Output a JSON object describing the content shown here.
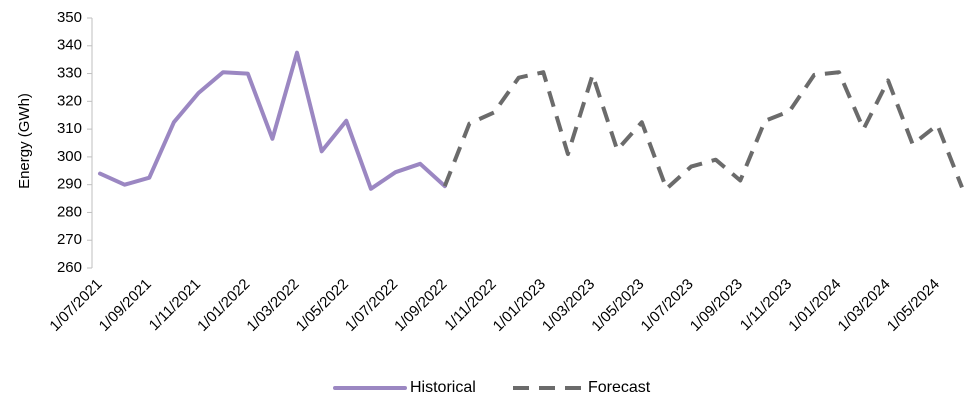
{
  "chart_data": {
    "type": "line",
    "title": "",
    "xlabel": "",
    "ylabel": "Energy (GWh)",
    "ylim": [
      260,
      350
    ],
    "yticks": [
      260,
      270,
      280,
      290,
      300,
      310,
      320,
      330,
      340,
      350
    ],
    "grid": false,
    "legend_position": "bottom",
    "x": [
      "2021-07",
      "2021-08",
      "2021-09",
      "2021-10",
      "2021-11",
      "2021-12",
      "2022-01",
      "2022-02",
      "2022-03",
      "2022-04",
      "2022-05",
      "2022-06",
      "2022-07",
      "2022-08",
      "2022-09",
      "2022-10",
      "2022-11",
      "2022-12",
      "2023-01",
      "2023-02",
      "2023-03",
      "2023-04",
      "2023-05",
      "2023-06",
      "2023-07",
      "2023-08",
      "2023-09",
      "2023-10",
      "2023-11",
      "2023-12",
      "2024-01",
      "2024-02",
      "2024-03",
      "2024-04",
      "2024-05",
      "2024-06"
    ],
    "x_tick_labels": [
      "1/07/2021",
      "1/09/2021",
      "1/11/2021",
      "1/01/2022",
      "1/03/2022",
      "1/05/2022",
      "1/07/2022",
      "1/09/2022",
      "1/11/2022",
      "1/01/2023",
      "1/03/2023",
      "1/05/2023",
      "1/07/2023",
      "1/09/2023",
      "1/11/2023",
      "1/01/2024",
      "1/03/2024",
      "1/05/2024"
    ],
    "series": [
      {
        "name": "Historical",
        "color": "#9b87c2",
        "style": "solid",
        "values": [
          294,
          290,
          292.5,
          312.5,
          323,
          330.5,
          330,
          306.5,
          337.5,
          302,
          313,
          288.5,
          294.5,
          297.5,
          289.5,
          null,
          null,
          null,
          null,
          null,
          null,
          null,
          null,
          null,
          null,
          null,
          null,
          null,
          null,
          null,
          null,
          null,
          null,
          null,
          null,
          null
        ]
      },
      {
        "name": "Forecast",
        "color": "#6b6b6b",
        "style": "dashed",
        "values": [
          null,
          null,
          null,
          null,
          null,
          null,
          null,
          null,
          null,
          null,
          null,
          null,
          null,
          null,
          289.5,
          312,
          316,
          328.5,
          330.5,
          301,
          329.5,
          302.5,
          312.5,
          288.5,
          296.5,
          299,
          291.5,
          313,
          316.5,
          329.5,
          330.5,
          310,
          327.5,
          304.5,
          311.5,
          289
        ]
      }
    ]
  }
}
